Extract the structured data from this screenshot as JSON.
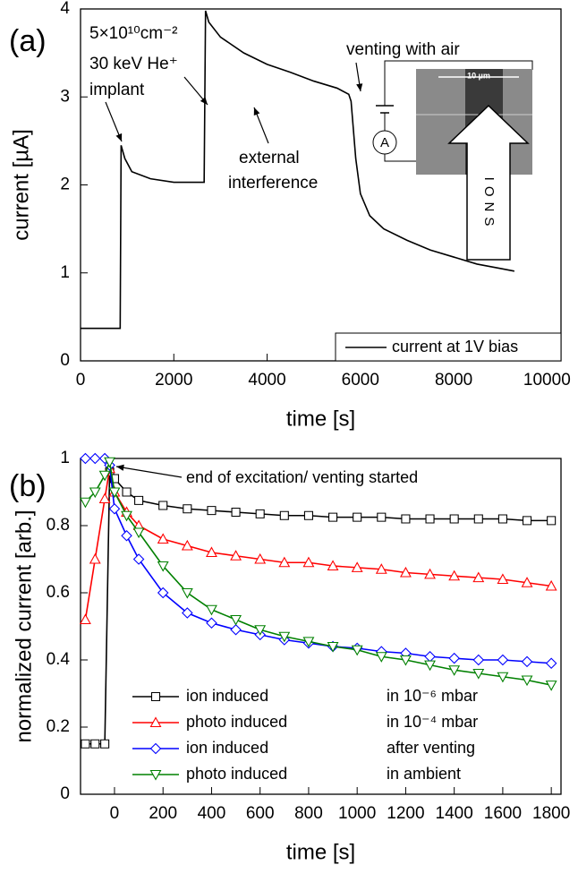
{
  "chart_data": [
    {
      "type": "line",
      "panel": "(a)",
      "xlabel": "time [s]",
      "ylabel": "current [µA]",
      "x": [
        0,
        850,
        870,
        950,
        1100,
        1500,
        2000,
        2650,
        2680,
        2750,
        3000,
        3500,
        4000,
        4500,
        5000,
        5500,
        5750,
        5800,
        5900,
        6000,
        6200,
        6500,
        7000,
        7500,
        8000,
        8500,
        9000,
        9300
      ],
      "series": [
        {
          "name": "current at 1V bias",
          "color": "#000000",
          "values": [
            0.37,
            0.37,
            2.45,
            2.3,
            2.15,
            2.07,
            2.03,
            2.03,
            3.98,
            3.85,
            3.68,
            3.5,
            3.37,
            3.28,
            3.18,
            3.1,
            3.03,
            2.95,
            2.3,
            1.9,
            1.65,
            1.5,
            1.37,
            1.26,
            1.18,
            1.1,
            1.05,
            1.02
          ]
        }
      ],
      "xlim": [
        0,
        10300
      ],
      "xticks": [
        0,
        2000,
        4000,
        6000,
        8000,
        10000
      ],
      "ylim": [
        0,
        4
      ],
      "yticks": [
        0,
        1,
        2,
        3,
        4
      ],
      "annotations": [
        "5×10¹⁰cm⁻²",
        "30 keV He⁺",
        "implant",
        "venting with air",
        "external",
        "interference"
      ],
      "inset": {
        "scale_bar": "10 µm",
        "meter": "A",
        "arrow_label": "IONS"
      }
    },
    {
      "type": "line",
      "panel": "(b)",
      "xlabel": "time [s]",
      "ylabel": "normalized current [arb.]",
      "x": [
        -120,
        -80,
        -40,
        -20,
        0,
        50,
        100,
        200,
        300,
        400,
        500,
        600,
        700,
        800,
        900,
        1000,
        1100,
        1200,
        1300,
        1400,
        1500,
        1600,
        1700,
        1800
      ],
      "series": [
        {
          "name": "ion induced",
          "condition": "in 10⁻⁶ mbar",
          "color": "#000000",
          "marker": "square",
          "values": [
            0.15,
            0.15,
            0.15,
            0.96,
            0.94,
            0.9,
            0.875,
            0.86,
            0.85,
            0.845,
            0.84,
            0.835,
            0.83,
            0.83,
            0.825,
            0.825,
            0.825,
            0.82,
            0.82,
            0.82,
            0.82,
            0.82,
            0.815,
            0.815
          ]
        },
        {
          "name": "photo induced",
          "condition": "in 10⁻⁴ mbar",
          "color": "#ff0000",
          "marker": "triangle-up",
          "values": [
            0.52,
            0.7,
            0.88,
            0.97,
            0.9,
            0.84,
            0.8,
            0.76,
            0.74,
            0.72,
            0.71,
            0.7,
            0.69,
            0.69,
            0.68,
            0.675,
            0.67,
            0.66,
            0.655,
            0.65,
            0.645,
            0.64,
            0.63,
            0.62
          ]
        },
        {
          "name": "ion induced",
          "condition": "after venting",
          "color": "#0000ff",
          "marker": "diamond",
          "values": [
            1,
            1,
            1,
            0.98,
            0.85,
            0.77,
            0.7,
            0.6,
            0.54,
            0.51,
            0.49,
            0.475,
            0.46,
            0.45,
            0.44,
            0.435,
            0.425,
            0.42,
            0.41,
            0.405,
            0.4,
            0.4,
            0.395,
            0.39
          ]
        },
        {
          "name": "photo induced",
          "condition": "in ambient",
          "color": "#008000",
          "marker": "triangle-down",
          "values": [
            0.87,
            0.9,
            0.95,
            0.99,
            0.9,
            0.83,
            0.78,
            0.68,
            0.6,
            0.55,
            0.52,
            0.49,
            0.47,
            0.455,
            0.44,
            0.43,
            0.41,
            0.4,
            0.385,
            0.37,
            0.36,
            0.35,
            0.34,
            0.325
          ]
        }
      ],
      "xlim": [
        -140,
        1840
      ],
      "xticks": [
        0,
        200,
        400,
        600,
        800,
        1000,
        1200,
        1400,
        1600,
        1800
      ],
      "ylim": [
        0,
        1
      ],
      "yticks": [
        0,
        0.2,
        0.4,
        0.6,
        0.8,
        1
      ],
      "annotations": [
        "end of excitation/ venting started"
      ]
    }
  ]
}
